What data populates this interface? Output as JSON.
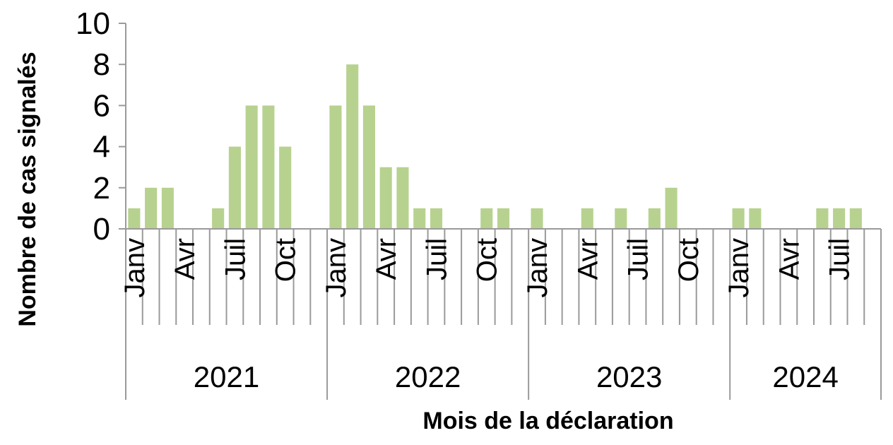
{
  "chart_data": {
    "type": "bar",
    "xlabel": "Mois de la déclaration",
    "ylabel": "Nombre de cas signalés",
    "ylim": [
      0,
      10
    ],
    "yticks": [
      "0",
      "2",
      "4",
      "6",
      "8",
      "10"
    ],
    "color": "#b7d28f",
    "grid": false,
    "years": [
      {
        "label": "2021",
        "month_labels": [
          "Janv",
          "",
          "",
          "Avr",
          "",
          "",
          "Juil",
          "",
          "",
          "Oct",
          "",
          ""
        ],
        "values": [
          1,
          2,
          2,
          0,
          0,
          1,
          4,
          6,
          6,
          4,
          0,
          0
        ]
      },
      {
        "label": "2022",
        "month_labels": [
          "Janv",
          "",
          "",
          "Avr",
          "",
          "",
          "Juil",
          "",
          "",
          "Oct",
          "",
          ""
        ],
        "values": [
          6,
          8,
          6,
          3,
          3,
          1,
          1,
          0,
          0,
          1,
          1,
          0
        ]
      },
      {
        "label": "2023",
        "month_labels": [
          "Janv",
          "",
          "",
          "Avr",
          "",
          "",
          "Juil",
          "",
          "",
          "Oct",
          "",
          ""
        ],
        "values": [
          1,
          0,
          0,
          1,
          0,
          1,
          0,
          1,
          2,
          0,
          0,
          0
        ]
      },
      {
        "label": "2024",
        "month_labels": [
          "Janv",
          "",
          "",
          "Avr",
          "",
          "",
          "Juil",
          "",
          ""
        ],
        "values": [
          1,
          1,
          0,
          0,
          0,
          1,
          1,
          1,
          0
        ]
      }
    ]
  }
}
